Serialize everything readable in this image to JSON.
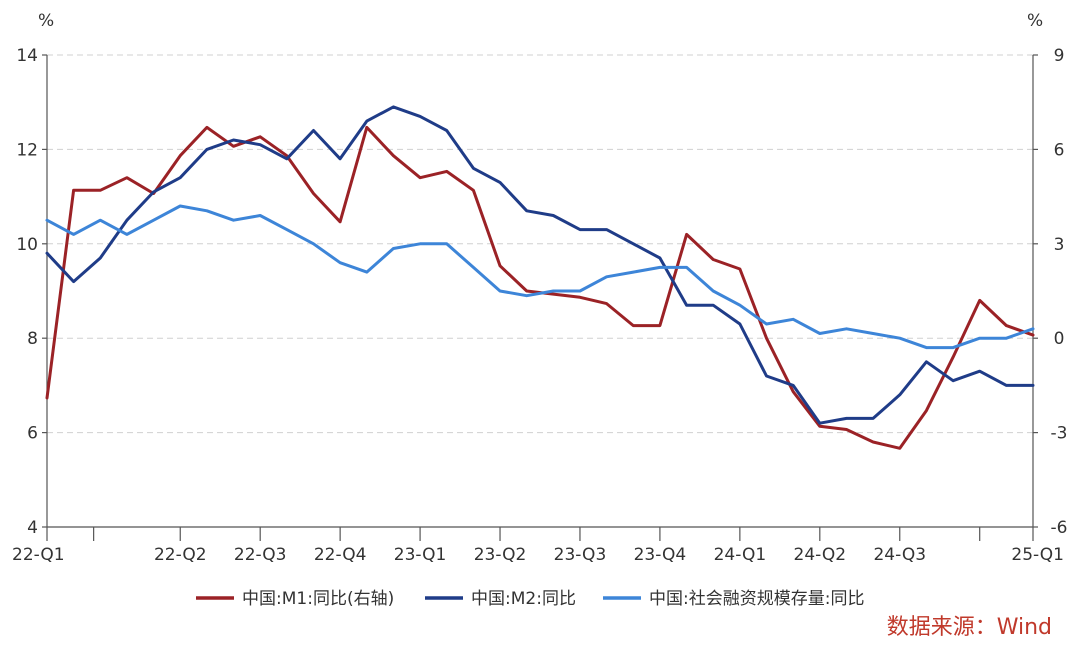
{
  "chart_data": {
    "type": "line",
    "left_axis": {
      "unit": "%",
      "ylim": [
        4,
        14
      ],
      "ticks": [
        4,
        6,
        8,
        10,
        12,
        14
      ]
    },
    "right_axis": {
      "unit": "%",
      "ylim": [
        -6,
        9
      ],
      "ticks": [
        -6,
        -3,
        0,
        3,
        6,
        9
      ]
    },
    "x_tick_labels": [
      "22-Q1",
      "22-Q2",
      "22-Q3",
      "22-Q4",
      "23-Q1",
      "23-Q2",
      "23-Q3",
      "23-Q4",
      "24-Q1",
      "24-Q2",
      "24-Q3",
      "25-Q1"
    ],
    "grid": "horizontal dashed",
    "legend_position": "bottom",
    "source": "数据来源：Wind",
    "series": [
      {
        "name": "中国:M1:同比(右轴)",
        "axis": "right",
        "color": "#9b2226",
        "values": [
          -1.9,
          4.7,
          4.7,
          5.1,
          4.6,
          5.8,
          6.7,
          6.1,
          6.4,
          5.8,
          4.6,
          3.7,
          6.7,
          5.8,
          5.1,
          5.3,
          4.7,
          2.3,
          1.5,
          1.4,
          1.3,
          1.1,
          0.4,
          0.4,
          3.3,
          2.5,
          2.2,
          0.0,
          -1.7,
          -2.8,
          -2.9,
          -3.3,
          -3.5,
          -2.3,
          -0.6,
          1.2,
          0.4,
          0.1
        ]
      },
      {
        "name": "中国:M2:同比",
        "axis": "left",
        "color": "#1f3c88",
        "values": [
          9.8,
          9.2,
          9.7,
          10.5,
          11.1,
          11.4,
          12.0,
          12.2,
          12.1,
          11.8,
          12.4,
          11.8,
          12.6,
          12.9,
          12.7,
          12.4,
          11.6,
          11.3,
          10.7,
          10.6,
          10.3,
          10.3,
          10.0,
          9.7,
          8.7,
          8.7,
          8.3,
          7.2,
          7.0,
          6.2,
          6.3,
          6.3,
          6.8,
          7.5,
          7.1,
          7.3,
          7.0,
          7.0
        ]
      },
      {
        "name": "中国:社会融资规模存量:同比",
        "axis": "left",
        "color": "#3d85d8",
        "values": [
          10.5,
          10.2,
          10.5,
          10.2,
          10.5,
          10.8,
          10.7,
          10.5,
          10.6,
          10.3,
          10.0,
          9.6,
          9.4,
          9.9,
          10.0,
          10.0,
          9.5,
          9.0,
          8.9,
          9.0,
          9.0,
          9.3,
          9.4,
          9.5,
          9.5,
          9.0,
          8.7,
          8.3,
          8.4,
          8.1,
          8.2,
          8.1,
          8.0,
          7.8,
          7.8,
          8.0,
          8.0,
          8.2
        ]
      }
    ]
  }
}
